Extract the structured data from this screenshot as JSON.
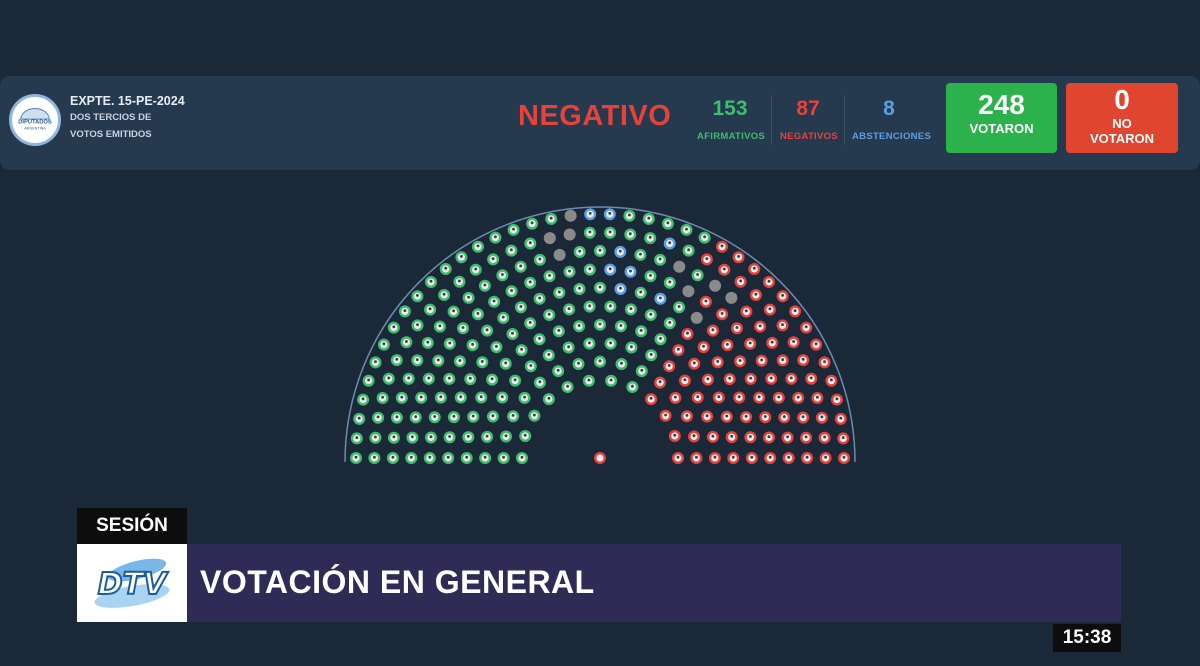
{
  "header": {
    "seal_text": [
      "DIPUTADOS",
      "ARGENTINA"
    ],
    "expediente": "EXPTE. 15-PE-2024",
    "description_line1": "DOS TERCIOS DE",
    "description_line2": "VOTOS EMITIDOS",
    "result": "NEGATIVO",
    "afirmativos": {
      "value": "153",
      "label": "AFIRMATIVOS"
    },
    "negativos": {
      "value": "87",
      "label": "NEGATIVOS"
    },
    "abstenciones": {
      "value": "8",
      "label": "ABSTENCIONES"
    },
    "votaron": {
      "value": "248",
      "label": "VOTARON"
    },
    "no_votaron": {
      "value": "0",
      "label_line1": "NO",
      "label_line2": "VOTARON"
    }
  },
  "chamber": {
    "total_seats": 257,
    "afirmativos": 153,
    "negativos": 87,
    "abstenciones": 8,
    "empty_seats": 9
  },
  "colors": {
    "background": "#1b2838",
    "afirmativo": "#3fbd6b",
    "negativo": "#e8413a",
    "abstencion": "#5b9fe3",
    "no_voto": "#8a8a8a",
    "votaron_box": "#2bb24c",
    "no_votaron_box": "#e0452f",
    "banner": "#2f2a56"
  },
  "lower_third": {
    "section_tag": "SESIÓN",
    "channel_logo": "DTV",
    "title": "VOTACIÓN EN GENERAL",
    "clock": "15:38"
  }
}
